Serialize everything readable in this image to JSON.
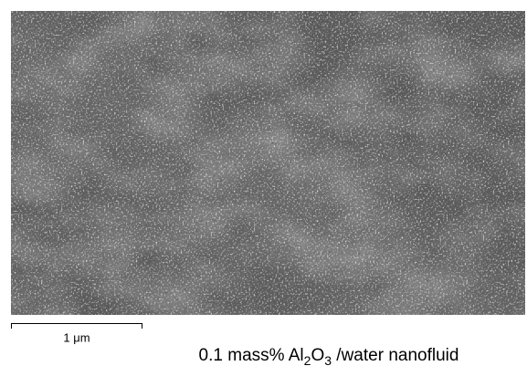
{
  "scale_bar": {
    "label": "1 μm"
  },
  "caption": {
    "parts": [
      "0.1 mass% Al",
      "2",
      "O",
      "3",
      " /water nanofluid"
    ]
  }
}
